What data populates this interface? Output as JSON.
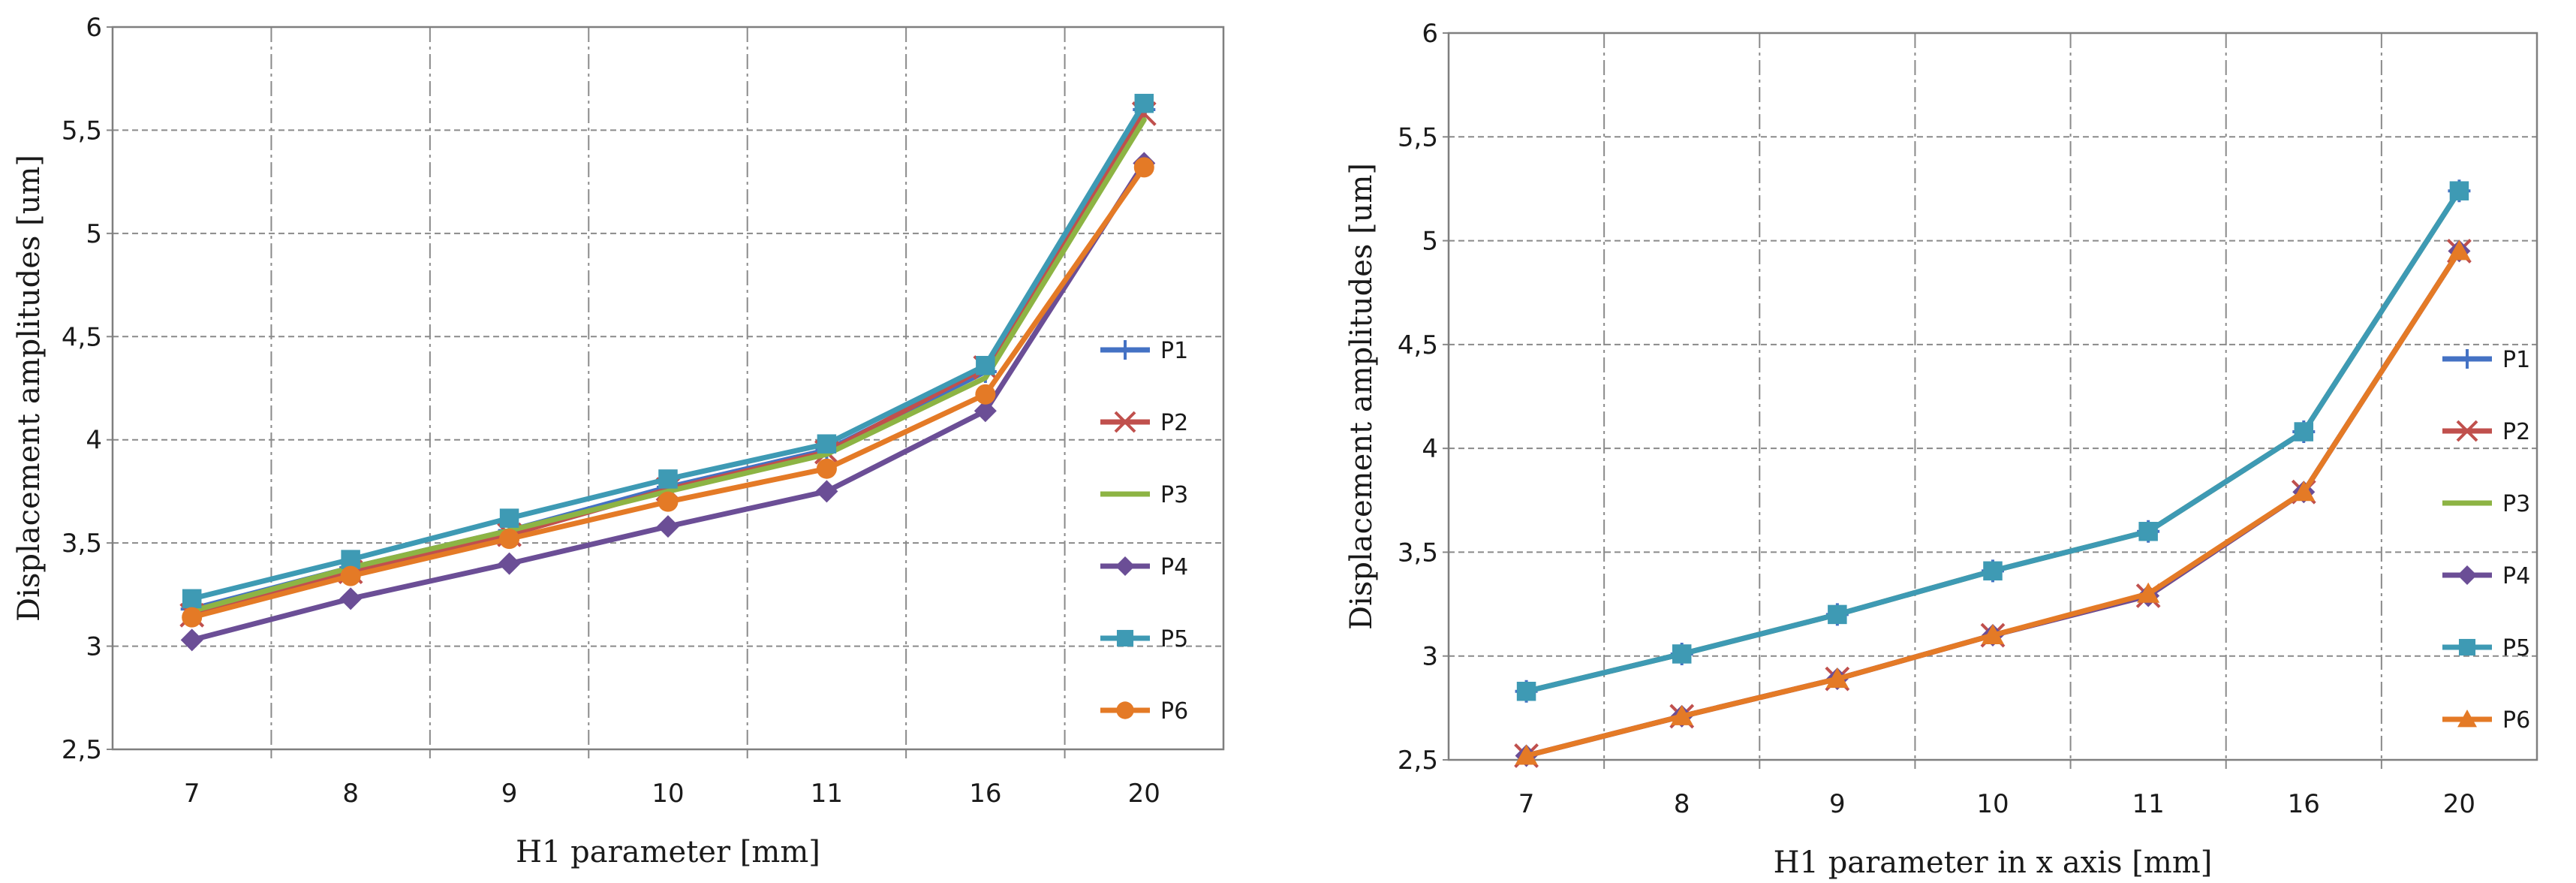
{
  "chart_data": [
    {
      "type": "line",
      "id": "left",
      "xlabel": "H1 parameter [mm]",
      "ylabel": "Displacement amplitudes [um]",
      "categories": [
        "7",
        "8",
        "9",
        "10",
        "11",
        "16",
        "20"
      ],
      "ylim": [
        2.5,
        6
      ],
      "yticks": [
        "2,5",
        "3",
        "3,5",
        "4",
        "4,5",
        "5",
        "5,5",
        "6"
      ],
      "grid": true,
      "legend_position": "right",
      "series": [
        {
          "name": "P1",
          "color": "#4472C4",
          "marker": "plus",
          "values": [
            3.18,
            3.38,
            3.56,
            3.77,
            3.95,
            4.33,
            5.6
          ]
        },
        {
          "name": "P2",
          "color": "#C0504D",
          "marker": "x",
          "values": [
            3.15,
            3.36,
            3.54,
            3.76,
            3.94,
            4.35,
            5.58
          ]
        },
        {
          "name": "P3",
          "color": "#8DB444",
          "marker": "line",
          "values": [
            3.17,
            3.38,
            3.56,
            3.75,
            3.93,
            4.3,
            5.55
          ]
        },
        {
          "name": "P4",
          "color": "#6B4E96",
          "marker": "diamond",
          "values": [
            3.03,
            3.23,
            3.4,
            3.58,
            3.75,
            4.14,
            5.34
          ]
        },
        {
          "name": "P5",
          "color": "#3E9AB4",
          "marker": "square",
          "values": [
            3.23,
            3.42,
            3.62,
            3.81,
            3.98,
            4.36,
            5.63
          ]
        },
        {
          "name": "P6",
          "color": "#E47A26",
          "marker": "circle",
          "values": [
            3.14,
            3.34,
            3.52,
            3.7,
            3.86,
            4.22,
            5.32
          ]
        }
      ]
    },
    {
      "type": "line",
      "id": "right",
      "xlabel": "H1 parameter in x axis [mm]",
      "ylabel": "Displacement amplitudes [um]",
      "categories": [
        "7",
        "8",
        "9",
        "10",
        "11",
        "16",
        "20"
      ],
      "ylim": [
        2.5,
        6
      ],
      "yticks": [
        "2,5",
        "3",
        "3,5",
        "4",
        "4,5",
        "5",
        "5,5",
        "6"
      ],
      "grid": true,
      "legend_position": "right",
      "series": [
        {
          "name": "P1",
          "color": "#4472C4",
          "marker": "plus",
          "values": [
            2.83,
            3.01,
            3.2,
            3.41,
            3.6,
            4.08,
            5.24
          ]
        },
        {
          "name": "P2",
          "color": "#C0504D",
          "marker": "x",
          "values": [
            2.52,
            2.71,
            2.89,
            3.1,
            3.29,
            3.79,
            4.95
          ]
        },
        {
          "name": "P3",
          "color": "#8DB444",
          "marker": "line",
          "values": [
            2.83,
            3.01,
            3.2,
            3.41,
            3.6,
            4.08,
            5.24
          ]
        },
        {
          "name": "P4",
          "color": "#6B4E96",
          "marker": "diamond",
          "values": [
            2.52,
            2.71,
            2.89,
            3.1,
            3.29,
            3.79,
            4.95
          ]
        },
        {
          "name": "P5",
          "color": "#3E9AB4",
          "marker": "square",
          "values": [
            2.83,
            3.01,
            3.2,
            3.41,
            3.6,
            4.08,
            5.24
          ]
        },
        {
          "name": "P6",
          "color": "#E47A26",
          "marker": "triangle",
          "values": [
            2.52,
            2.71,
            2.89,
            3.1,
            3.3,
            3.79,
            4.95
          ]
        }
      ]
    }
  ]
}
